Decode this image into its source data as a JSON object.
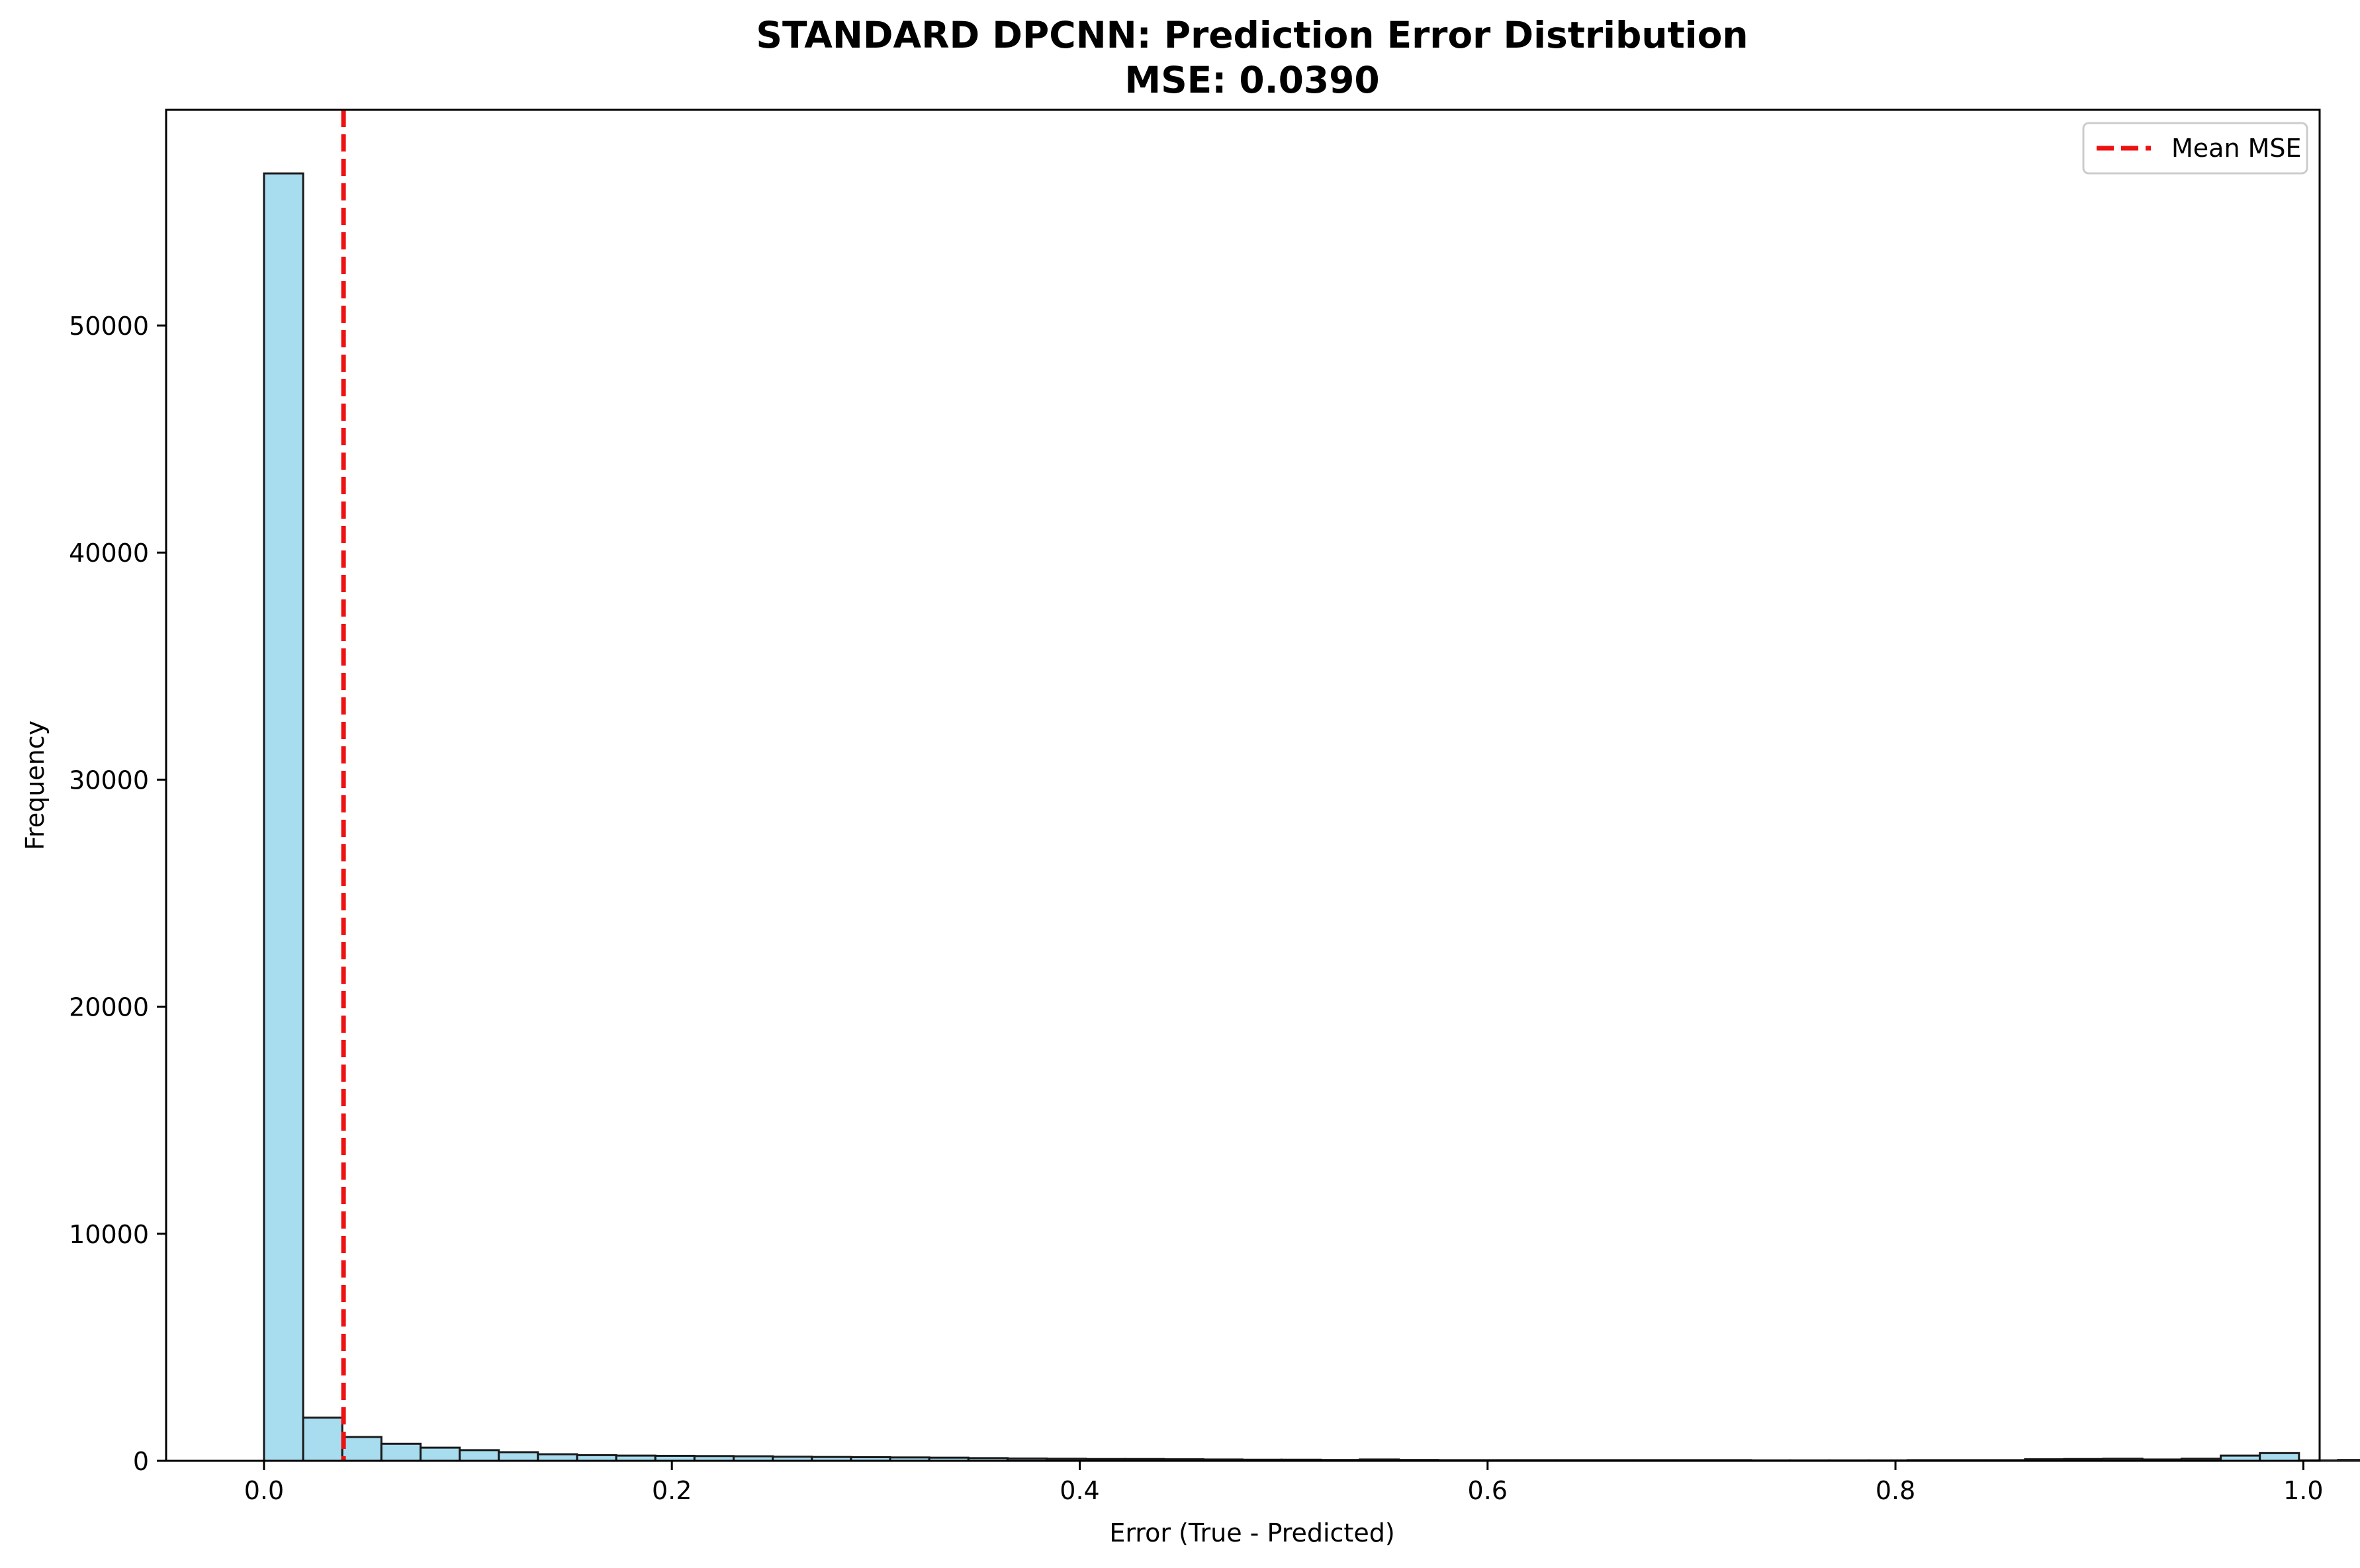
{
  "chart_data": {
    "type": "bar",
    "title": "STANDARD DPCNN: Prediction Error Distribution",
    "subtitle": "MSE: 0.0390",
    "xlabel": "Error (True - Predicted)",
    "ylabel": "Frequency",
    "xlim": [
      -0.048,
      1.008
    ],
    "ylim": [
      0,
      59500
    ],
    "xticks": [
      0.0,
      0.2,
      0.4,
      0.6,
      0.8,
      1.0
    ],
    "xtick_labels": [
      "0.0",
      "0.2",
      "0.4",
      "0.6",
      "0.8",
      "1.0"
    ],
    "yticks": [
      0,
      10000,
      20000,
      30000,
      40000,
      50000
    ],
    "ytick_labels": [
      "0",
      "10000",
      "20000",
      "30000",
      "40000",
      "50000"
    ],
    "bin_start": 0.0,
    "bin_width": 0.01919,
    "values": [
      56700,
      1900,
      1050,
      750,
      580,
      470,
      380,
      290,
      250,
      230,
      220,
      210,
      200,
      180,
      170,
      160,
      150,
      140,
      120,
      100,
      90,
      80,
      80,
      70,
      60,
      50,
      50,
      40,
      60,
      40,
      30,
      30,
      30,
      30,
      30,
      30,
      30,
      30,
      20,
      20,
      20,
      20,
      30,
      30,
      30,
      70,
      80,
      90,
      60,
      90,
      230,
      340,
      20,
      40,
      60,
      160
    ],
    "bar_fill": "#a8dcef",
    "bar_edge": "#1a1a1a",
    "mean_line": {
      "label": "Mean MSE",
      "x": 0.039,
      "color": "#ee1111",
      "style": "dashed"
    },
    "legend_position": "upper right",
    "grid": false
  }
}
